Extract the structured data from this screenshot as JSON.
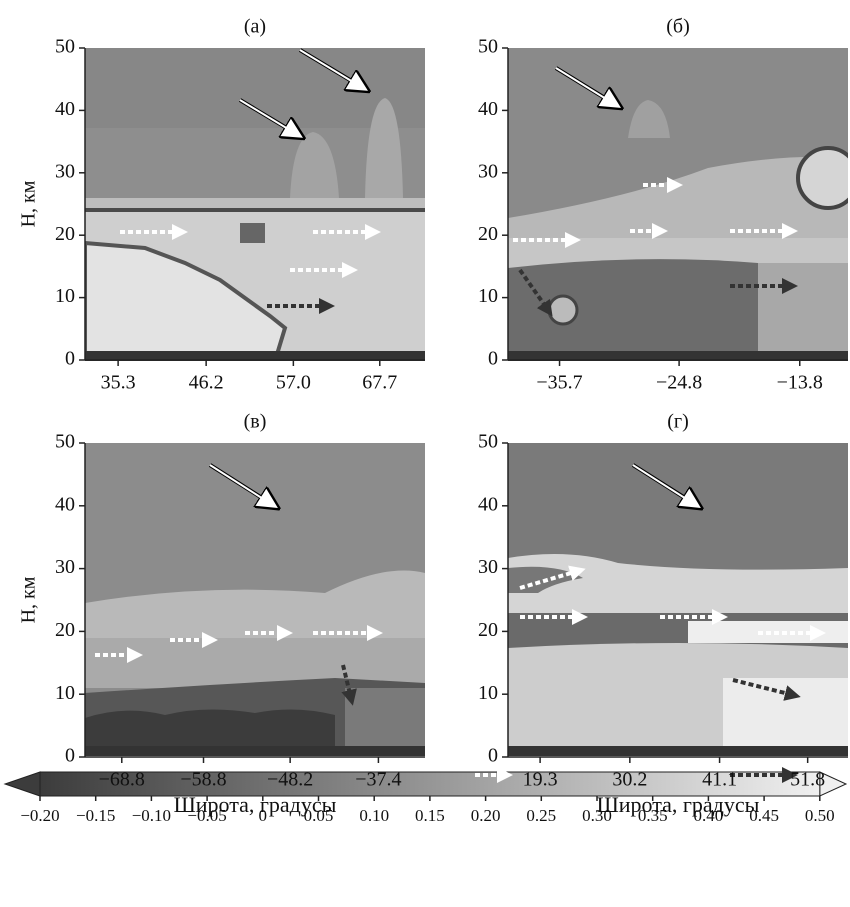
{
  "chart_data": [
    {
      "type": "heatmap",
      "title": "(а)",
      "ylabel": "H, км",
      "xlim": [
        31.2,
        73.3
      ],
      "xticks": [
        35.3,
        46.2,
        {
          "value": 57.0,
          "label": "57.0"
        },
        67.7
      ],
      "ylim": [
        0,
        50
      ],
      "yticks": [
        0,
        10,
        20,
        30,
        40,
        50
      ]
    },
    {
      "type": "heatmap",
      "title": "(б)",
      "xlim": [
        -40.4,
        -9.4
      ],
      "xticks": [
        {
          "value": -35.7,
          "label": "−35.7"
        },
        {
          "value": -24.8,
          "label": "−24.8"
        },
        {
          "value": -13.8,
          "label": "−13.8"
        }
      ],
      "ylim": [
        0,
        50
      ],
      "yticks": [
        0,
        10,
        20,
        30,
        40,
        50
      ]
    },
    {
      "type": "heatmap",
      "title": "(в)",
      "ylabel": "H, км",
      "xlabel": "Широта, градусы",
      "xlim": [
        -73.3,
        -31.7
      ],
      "xticks": [
        {
          "value": -68.8,
          "label": "−68.8"
        },
        {
          "value": -58.8,
          "label": "−58.8"
        },
        {
          "value": -48.2,
          "label": "−48.2"
        },
        {
          "value": -37.4,
          "label": "−37.4"
        }
      ],
      "ylim": [
        0,
        50
      ],
      "yticks": [
        0,
        10,
        20,
        30,
        40,
        50
      ]
    },
    {
      "type": "heatmap",
      "title": "(г)",
      "xlabel": "Широта, градусы",
      "xlim": [
        15.4,
        56.7
      ],
      "xticks": [
        19.3,
        30.2,
        41.1,
        51.8
      ],
      "ylim": [
        0,
        50
      ],
      "yticks": [
        0,
        10,
        20,
        30,
        40,
        50
      ]
    },
    {
      "type": "colorbar",
      "vlim": [
        -0.2,
        0.5
      ],
      "colors": [
        "#3c3c3c",
        "#f0f0f0"
      ],
      "ticks": [
        {
          "value": -0.2,
          "label": "−0.20"
        },
        {
          "value": -0.15,
          "label": "−0.15"
        },
        {
          "value": -0.1,
          "label": "−0.10"
        },
        {
          "value": -0.05,
          "label": "−0.05"
        },
        0,
        0.05,
        {
          "value": 0.1,
          "label": "0.10"
        },
        0.15,
        {
          "value": 0.2,
          "label": "0.20"
        },
        0.25,
        {
          "value": 0.3,
          "label": "0.30"
        },
        0.35,
        {
          "value": 0.4,
          "label": "0.40"
        },
        0.45,
        {
          "value": 0.5,
          "label": "0.50"
        }
      ]
    }
  ]
}
